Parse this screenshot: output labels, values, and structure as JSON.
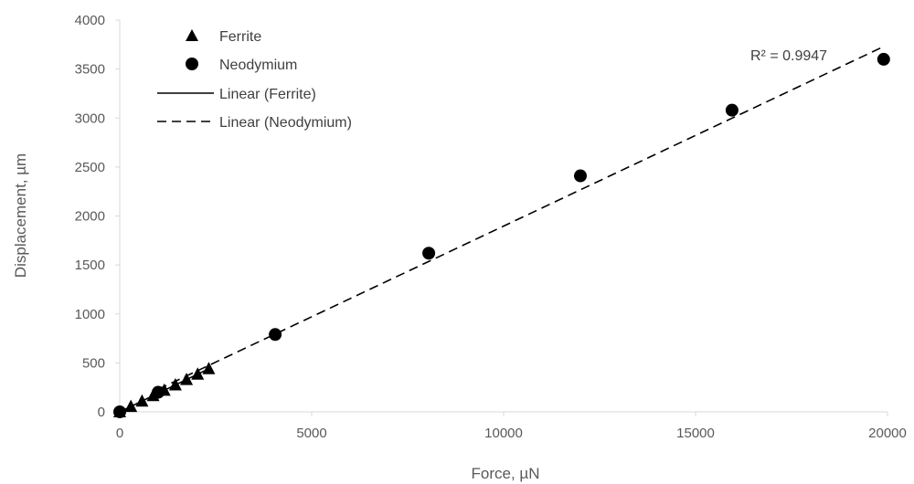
{
  "chart_data": {
    "type": "scatter",
    "title": "",
    "xlabel": "Force, µN",
    "ylabel": "Displacement, µm",
    "xlim": [
      0,
      20000
    ],
    "ylim": [
      0,
      4000
    ],
    "x_ticks": [
      0,
      5000,
      10000,
      15000,
      20000
    ],
    "y_ticks": [
      0,
      500,
      1000,
      1500,
      2000,
      2500,
      3000,
      3500,
      4000
    ],
    "x_tick_labels": [
      "0",
      "5000",
      "10000",
      "15000",
      "20000"
    ],
    "y_tick_labels": [
      "0",
      "500",
      "1000",
      "1500",
      "2000",
      "2500",
      "3000",
      "3500",
      "4000"
    ],
    "grid": false,
    "legend_position": "top-left",
    "series": [
      {
        "name": "Ferrite",
        "marker": "triangle",
        "color": "#000000",
        "x": [
          0,
          290,
          580,
          870,
          1160,
          1450,
          1740,
          2030,
          2320
        ],
        "y": [
          0,
          55,
          110,
          165,
          220,
          275,
          330,
          385,
          440
        ]
      },
      {
        "name": "Neodymium",
        "marker": "circle",
        "color": "#000000",
        "x": [
          0,
          1000,
          4050,
          8050,
          12000,
          15950,
          19900
        ],
        "y": [
          0,
          200,
          790,
          1620,
          2410,
          3080,
          3600
        ]
      }
    ],
    "trendlines": [
      {
        "name": "Linear (Ferrite)",
        "style": "solid",
        "color": "#000000",
        "x": [
          0,
          2320
        ],
        "y": [
          0,
          440
        ]
      },
      {
        "name": "Linear (Neodymium)",
        "style": "dashed",
        "color": "#000000",
        "x": [
          1000,
          19900
        ],
        "y": [
          230,
          3730
        ]
      }
    ],
    "annotations": [
      {
        "text": "R² = 0.9947",
        "near": "top-right"
      }
    ]
  }
}
